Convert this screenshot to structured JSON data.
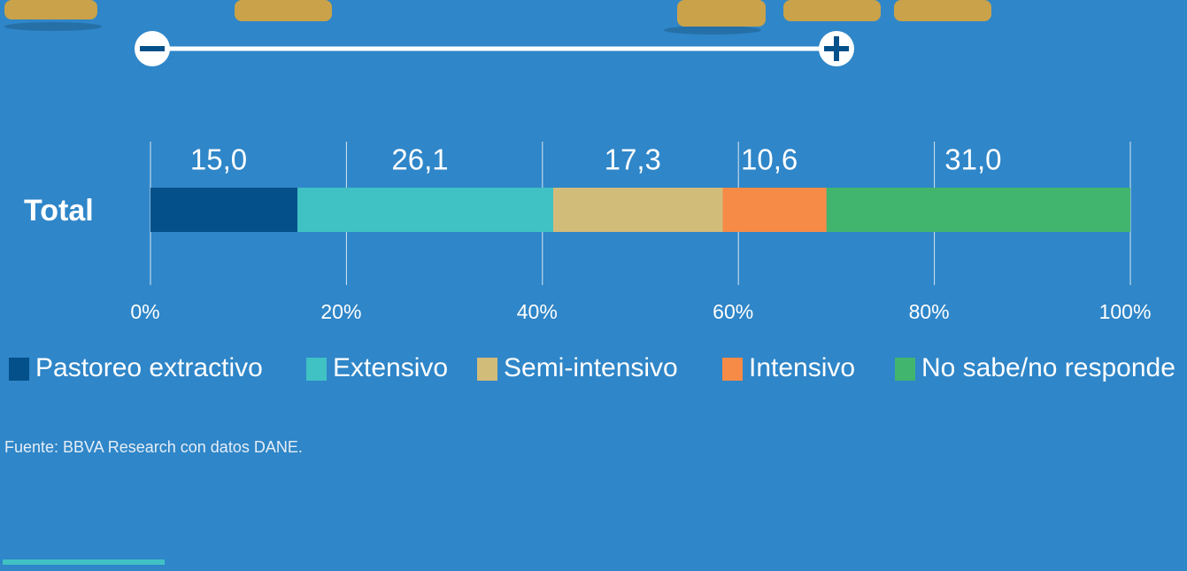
{
  "chart_data": {
    "type": "stacked_barh",
    "categories": [
      "Total"
    ],
    "series": [
      {
        "name": "Pastoreo extractivo",
        "color": "#03508a",
        "values": [
          15.0
        ],
        "value_labels": [
          "15,0"
        ]
      },
      {
        "name": "Extensivo",
        "color": "#40c1c4",
        "values": [
          26.1
        ],
        "value_labels": [
          "26,1"
        ]
      },
      {
        "name": "Semi-intensivo",
        "color": "#d2bc7a",
        "values": [
          17.3
        ],
        "value_labels": [
          "17,3"
        ]
      },
      {
        "name": "Intensivo",
        "color": "#f68b47",
        "values": [
          10.6
        ],
        "value_labels": [
          "10,6"
        ]
      },
      {
        "name": "No sabe/no responde",
        "color": "#41b56e",
        "values": [
          31.0
        ],
        "value_labels": [
          "31,0"
        ]
      }
    ],
    "xlim": [
      0,
      100
    ],
    "xticks": [
      {
        "value": 0,
        "label": "0%"
      },
      {
        "value": 20,
        "label": "20%"
      },
      {
        "value": 40,
        "label": "40%"
      },
      {
        "value": 60,
        "label": "60%"
      },
      {
        "value": 80,
        "label": "80%"
      },
      {
        "value": 100,
        "label": "100%"
      }
    ],
    "grid": true,
    "legend": "bottom",
    "source": "Fuente: BBVA Research con datos DANE."
  }
}
